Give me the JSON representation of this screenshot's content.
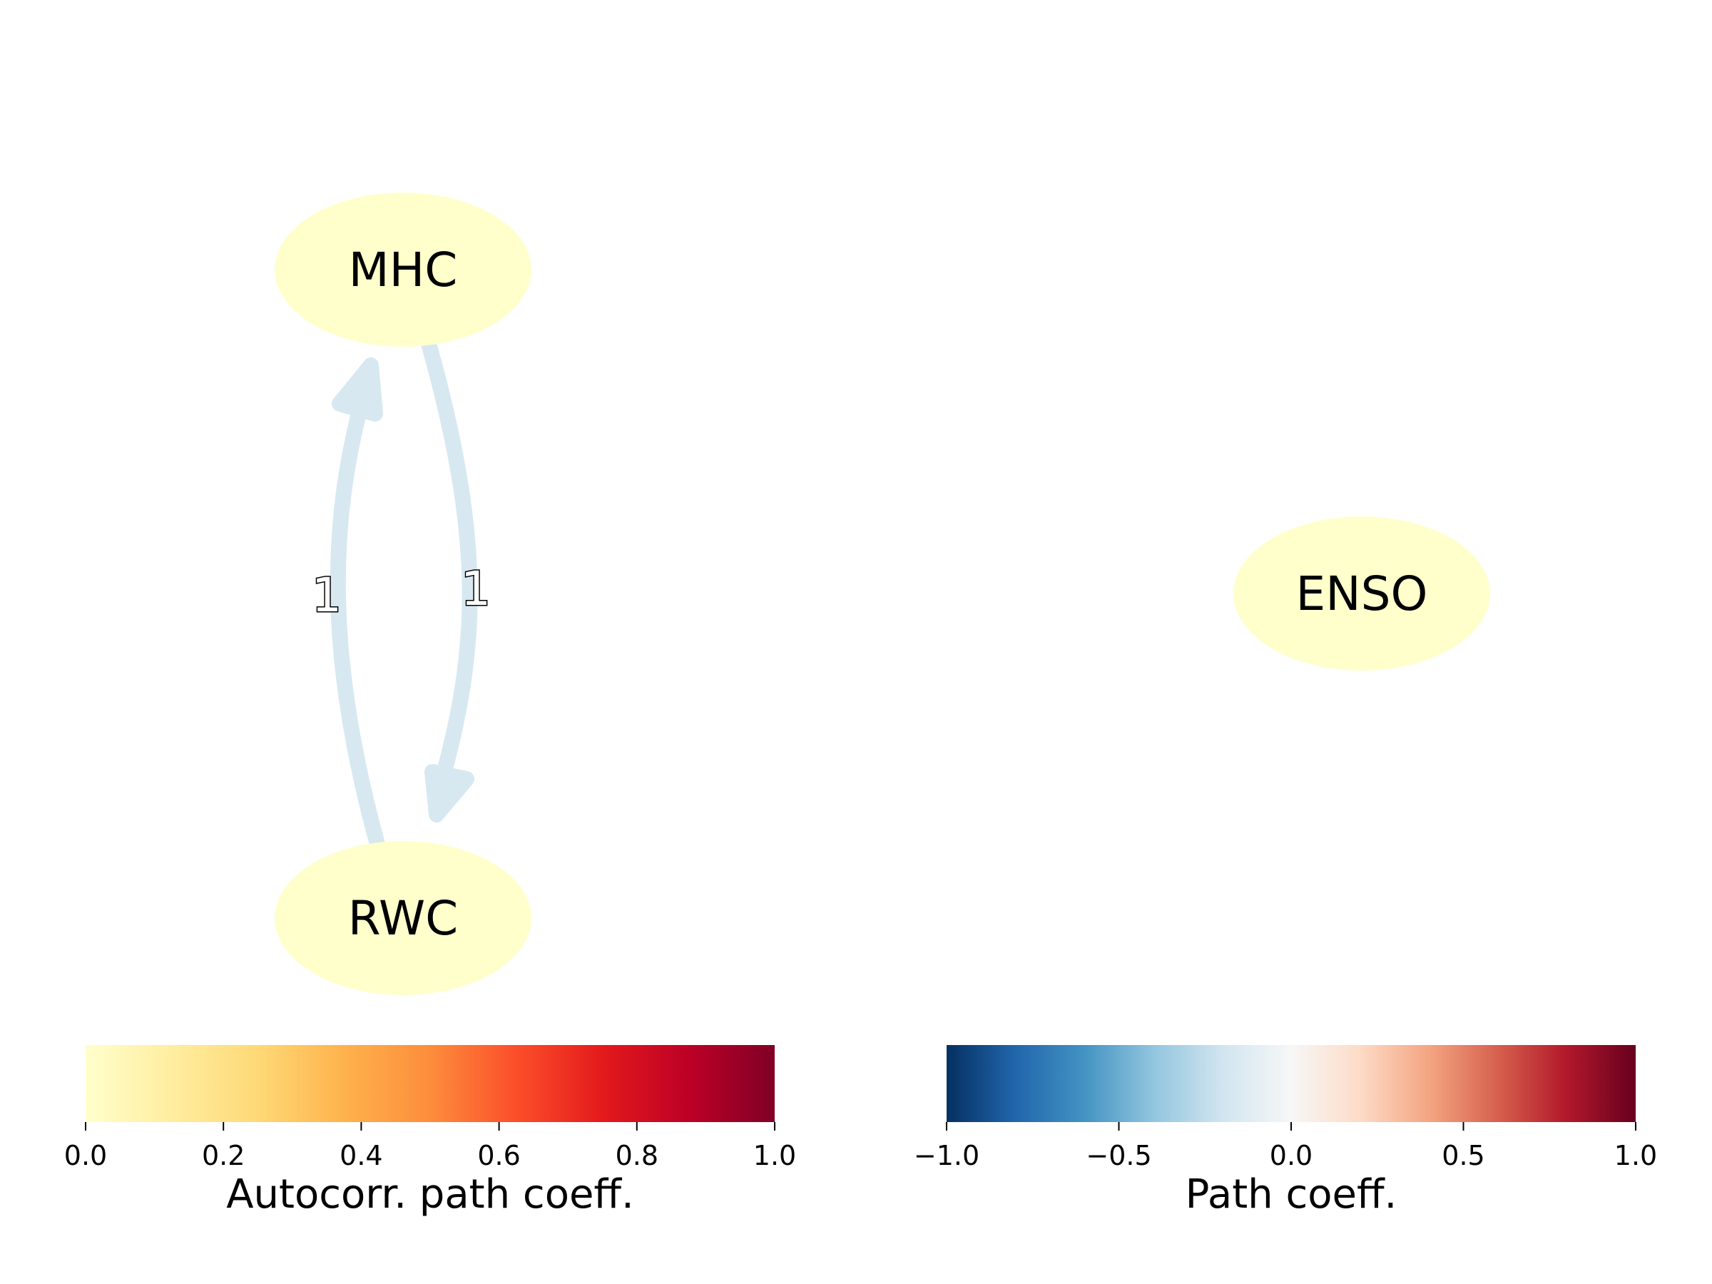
{
  "nodes": {
    "mhc": {
      "label": "MHC"
    },
    "rwc": {
      "label": "RWC"
    },
    "enso": {
      "label": "ENSO"
    }
  },
  "edges": {
    "rwc_to_mhc": {
      "label": "1"
    },
    "mhc_to_rwc": {
      "label": "1"
    }
  },
  "colors": {
    "node_fill": "#ffffcc",
    "edge": "#d7e8f1"
  },
  "colorbars": {
    "autocorr": {
      "title": "Autocorr. path coeff.",
      "colormap": "YlOrRd",
      "range": [
        0.0,
        1.0
      ],
      "ticks": [
        "0.0",
        "0.2",
        "0.4",
        "0.6",
        "0.8",
        "1.0"
      ]
    },
    "path": {
      "title": "Path coeff.",
      "colormap": "RdBu_r",
      "range": [
        -1.0,
        1.0
      ],
      "ticks": [
        "−1.0",
        "−0.5",
        "0.0",
        "0.5",
        "1.0"
      ]
    }
  }
}
